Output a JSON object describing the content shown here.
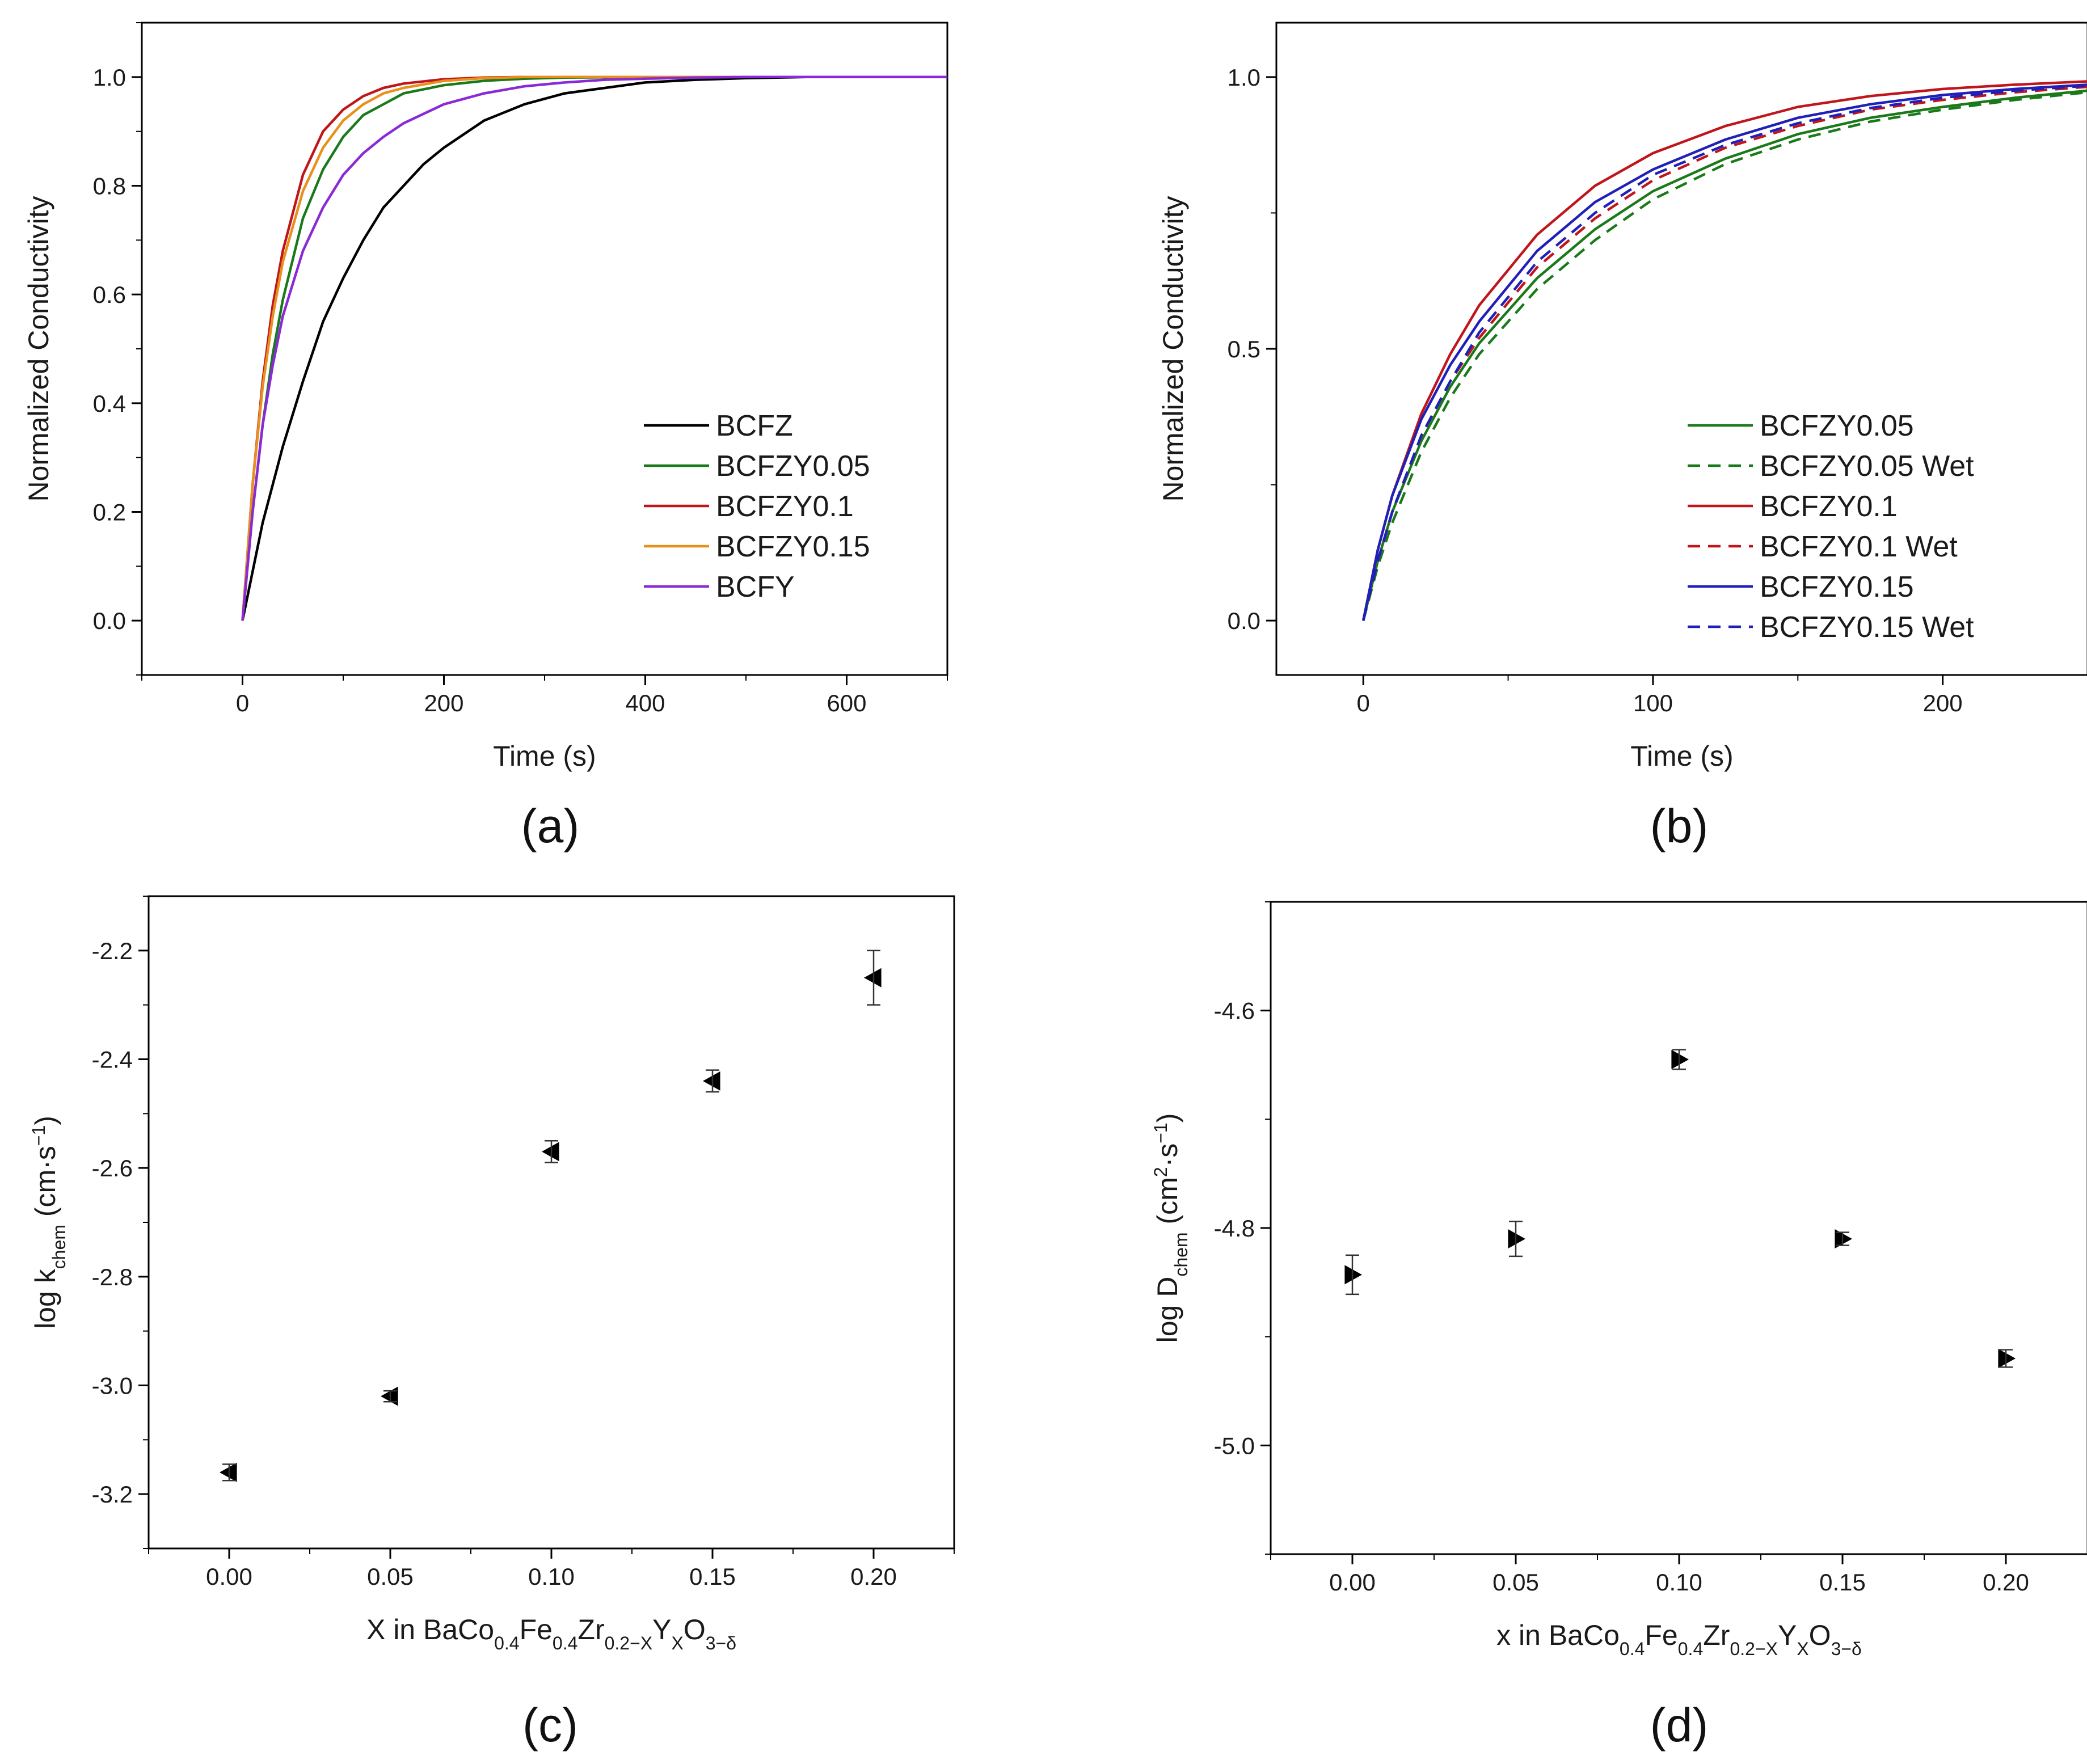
{
  "figure": {
    "panel_labels": [
      "(a)",
      "(b)",
      "(c)",
      "(d)"
    ]
  },
  "chart_data": [
    {
      "panel": "a",
      "type": "line",
      "xlabel": "Time (s)",
      "ylabel": "Normalized Conductivity",
      "xlim": [
        -100,
        700
      ],
      "ylim": [
        -0.1,
        1.1
      ],
      "xticks": [
        0,
        200,
        400,
        600
      ],
      "xtick_labels": [
        "0",
        "200",
        "400",
        "600"
      ],
      "yticks": [
        0.0,
        0.2,
        0.4,
        0.6,
        0.8,
        1.0
      ],
      "ytick_labels": [
        "0.0",
        "0.2",
        "0.4",
        "0.6",
        "0.8",
        "1.0"
      ],
      "legend_position": "bottom-right",
      "series": [
        {
          "name": "BCFZ",
          "color": "#000000",
          "style": "solid",
          "x": [
            0,
            20,
            40,
            60,
            80,
            100,
            120,
            140,
            160,
            180,
            200,
            240,
            280,
            320,
            360,
            400,
            450,
            500,
            560,
            620,
            700
          ],
          "y": [
            0,
            0.18,
            0.32,
            0.44,
            0.55,
            0.63,
            0.7,
            0.76,
            0.8,
            0.84,
            0.87,
            0.92,
            0.95,
            0.97,
            0.98,
            0.99,
            0.995,
            0.998,
            1.0,
            1.0,
            1.0
          ]
        },
        {
          "name": "BCFZY0.05",
          "color": "#1a7a1a",
          "style": "solid",
          "x": [
            0,
            10,
            20,
            30,
            40,
            60,
            80,
            100,
            120,
            140,
            160,
            200,
            240,
            280,
            320,
            400,
            500,
            600,
            700
          ],
          "y": [
            0,
            0.2,
            0.36,
            0.49,
            0.59,
            0.74,
            0.83,
            0.89,
            0.93,
            0.95,
            0.97,
            0.985,
            0.993,
            0.997,
            0.999,
            1.0,
            1.0,
            1.0,
            1.0
          ]
        },
        {
          "name": "BCFZY0.1",
          "color": "#c0161b",
          "style": "solid",
          "x": [
            0,
            10,
            20,
            30,
            40,
            60,
            80,
            100,
            120,
            140,
            160,
            200,
            240,
            280,
            320,
            400,
            500,
            600,
            700
          ],
          "y": [
            0,
            0.25,
            0.44,
            0.58,
            0.68,
            0.82,
            0.9,
            0.94,
            0.965,
            0.98,
            0.988,
            0.996,
            0.999,
            1.0,
            1.0,
            1.0,
            1.0,
            1.0,
            1.0
          ]
        },
        {
          "name": "BCFZY0.15",
          "color": "#e8901c",
          "style": "solid",
          "x": [
            0,
            10,
            20,
            30,
            40,
            60,
            80,
            100,
            120,
            140,
            160,
            200,
            240,
            280,
            320,
            400,
            500,
            600,
            700
          ],
          "y": [
            0,
            0.25,
            0.43,
            0.56,
            0.66,
            0.79,
            0.87,
            0.92,
            0.95,
            0.97,
            0.98,
            0.993,
            0.998,
            1.0,
            1.0,
            1.0,
            1.0,
            1.0,
            1.0
          ]
        },
        {
          "name": "BCFY",
          "color": "#8a2ad6",
          "style": "solid",
          "x": [
            0,
            10,
            20,
            30,
            40,
            60,
            80,
            100,
            120,
            140,
            160,
            200,
            240,
            280,
            320,
            360,
            400,
            450,
            500,
            600,
            700
          ],
          "y": [
            0,
            0.2,
            0.36,
            0.47,
            0.56,
            0.68,
            0.76,
            0.82,
            0.86,
            0.89,
            0.915,
            0.95,
            0.97,
            0.983,
            0.99,
            0.995,
            0.997,
            0.999,
            1.0,
            1.0,
            1.0
          ]
        }
      ]
    },
    {
      "panel": "b",
      "type": "line",
      "xlabel": "Time (s)",
      "ylabel": "Normalized Conductivity",
      "xlim": [
        -30,
        250
      ],
      "ylim": [
        -0.1,
        1.1
      ],
      "xticks": [
        0,
        100,
        200
      ],
      "xtick_labels": [
        "0",
        "100",
        "200"
      ],
      "yticks": [
        0.0,
        0.5,
        1.0
      ],
      "ytick_labels": [
        "0.0",
        "0.5",
        "1.0"
      ],
      "legend_position": "bottom-right",
      "series": [
        {
          "name": "BCFZY0.05",
          "color": "#1a7a1a",
          "style": "solid",
          "x": [
            0,
            5,
            10,
            20,
            30,
            40,
            60,
            80,
            100,
            125,
            150,
            175,
            200,
            225,
            250
          ],
          "y": [
            0,
            0.11,
            0.2,
            0.33,
            0.43,
            0.51,
            0.63,
            0.72,
            0.79,
            0.85,
            0.895,
            0.925,
            0.945,
            0.962,
            0.975
          ]
        },
        {
          "name": "BCFZY0.05 Wet",
          "color": "#1a7a1a",
          "style": "dashed",
          "x": [
            0,
            5,
            10,
            20,
            30,
            40,
            60,
            80,
            100,
            125,
            150,
            175,
            200,
            225,
            250
          ],
          "y": [
            0,
            0.1,
            0.18,
            0.31,
            0.41,
            0.49,
            0.61,
            0.7,
            0.775,
            0.84,
            0.885,
            0.918,
            0.94,
            0.958,
            0.972
          ]
        },
        {
          "name": "BCFZY0.1",
          "color": "#c0161b",
          "style": "solid",
          "x": [
            0,
            5,
            10,
            20,
            30,
            40,
            60,
            80,
            100,
            125,
            150,
            175,
            200,
            225,
            250
          ],
          "y": [
            0,
            0.13,
            0.23,
            0.38,
            0.49,
            0.58,
            0.71,
            0.8,
            0.86,
            0.91,
            0.945,
            0.965,
            0.978,
            0.986,
            0.992
          ]
        },
        {
          "name": "BCFZY0.1 Wet",
          "color": "#c0161b",
          "style": "dashed",
          "x": [
            0,
            5,
            10,
            20,
            30,
            40,
            60,
            80,
            100,
            125,
            150,
            175,
            200,
            225,
            250
          ],
          "y": [
            0,
            0.11,
            0.2,
            0.34,
            0.44,
            0.52,
            0.65,
            0.74,
            0.81,
            0.87,
            0.91,
            0.94,
            0.958,
            0.972,
            0.982
          ]
        },
        {
          "name": "BCFZY0.15",
          "color": "#2020b8",
          "style": "solid",
          "x": [
            0,
            5,
            10,
            20,
            30,
            40,
            60,
            80,
            100,
            125,
            150,
            175,
            200,
            225,
            250
          ],
          "y": [
            0,
            0.13,
            0.23,
            0.37,
            0.47,
            0.55,
            0.68,
            0.77,
            0.83,
            0.885,
            0.925,
            0.95,
            0.967,
            0.978,
            0.986
          ]
        },
        {
          "name": "BCFZY0.15 Wet",
          "color": "#2020b8",
          "style": "dashed",
          "x": [
            0,
            5,
            10,
            20,
            30,
            40,
            60,
            80,
            100,
            125,
            150,
            175,
            200,
            225,
            250
          ],
          "y": [
            0,
            0.11,
            0.2,
            0.34,
            0.44,
            0.53,
            0.66,
            0.75,
            0.82,
            0.875,
            0.915,
            0.943,
            0.962,
            0.975,
            0.984
          ]
        }
      ]
    },
    {
      "panel": "c",
      "type": "scatter",
      "xlabel_parts": [
        {
          "t": "X in BaCo",
          "s": "base"
        },
        {
          "t": "0.4",
          "s": "sub"
        },
        {
          "t": "Fe",
          "s": "base"
        },
        {
          "t": "0.4",
          "s": "sub"
        },
        {
          "t": "Zr",
          "s": "base"
        },
        {
          "t": "0.2−X",
          "s": "sub"
        },
        {
          "t": "Y",
          "s": "base"
        },
        {
          "t": "X",
          "s": "sub"
        },
        {
          "t": "O",
          "s": "base"
        },
        {
          "t": "3−δ",
          "s": "sub"
        }
      ],
      "ylabel_parts": [
        {
          "t": "log k",
          "s": "base"
        },
        {
          "t": "chem",
          "s": "sub"
        },
        {
          "t": " (cm·s",
          "s": "base"
        },
        {
          "t": "−1",
          "s": "sup"
        },
        {
          "t": ")",
          "s": "base"
        }
      ],
      "xlim": [
        -0.025,
        0.225
      ],
      "ylim": [
        -3.3,
        -2.1
      ],
      "xticks": [
        0.0,
        0.05,
        0.1,
        0.15,
        0.2
      ],
      "xtick_labels": [
        "0.00",
        "0.05",
        "0.10",
        "0.15",
        "0.20"
      ],
      "yticks": [
        -3.2,
        -3.0,
        -2.8,
        -2.6,
        -2.4,
        -2.2
      ],
      "ytick_labels": [
        "-3.2",
        "-3.0",
        "-2.8",
        "-2.6",
        "-2.4",
        "-2.2"
      ],
      "marker": "triangle-left",
      "x": [
        0.0,
        0.05,
        0.1,
        0.15,
        0.2
      ],
      "y": [
        -3.16,
        -3.02,
        -2.57,
        -2.44,
        -2.25
      ],
      "yerr": [
        0.015,
        0.01,
        0.02,
        0.02,
        0.05
      ]
    },
    {
      "panel": "d",
      "type": "scatter",
      "xlabel_parts": [
        {
          "t": "x in BaCo",
          "s": "base"
        },
        {
          "t": "0.4",
          "s": "sub"
        },
        {
          "t": "Fe",
          "s": "base"
        },
        {
          "t": "0.4",
          "s": "sub"
        },
        {
          "t": "Zr",
          "s": "base"
        },
        {
          "t": "0.2−X",
          "s": "sub"
        },
        {
          "t": "Y",
          "s": "base"
        },
        {
          "t": "X",
          "s": "sub"
        },
        {
          "t": "O",
          "s": "base"
        },
        {
          "t": "3−δ",
          "s": "sub"
        }
      ],
      "ylabel_parts": [
        {
          "t": "log D",
          "s": "base"
        },
        {
          "t": "chem",
          "s": "sub"
        },
        {
          "t": " (cm",
          "s": "base"
        },
        {
          "t": "2",
          "s": "sup"
        },
        {
          "t": "·s",
          "s": "base"
        },
        {
          "t": "−1",
          "s": "sup"
        },
        {
          "t": ")",
          "s": "base"
        }
      ],
      "xlim": [
        -0.025,
        0.225
      ],
      "ylim": [
        -5.1,
        -4.5
      ],
      "xticks": [
        0.0,
        0.05,
        0.1,
        0.15,
        0.2
      ],
      "xtick_labels": [
        "0.00",
        "0.05",
        "0.10",
        "0.15",
        "0.20"
      ],
      "yticks": [
        -5.0,
        -4.8,
        -4.6
      ],
      "ytick_labels": [
        "-5.0",
        "-4.8",
        "-4.6"
      ],
      "marker": "triangle-right",
      "x": [
        0.0,
        0.05,
        0.1,
        0.15,
        0.2
      ],
      "y": [
        -4.843,
        -4.81,
        -4.645,
        -4.81,
        -4.92
      ],
      "yerr": [
        0.018,
        0.016,
        0.009,
        0.006,
        0.008
      ]
    }
  ]
}
